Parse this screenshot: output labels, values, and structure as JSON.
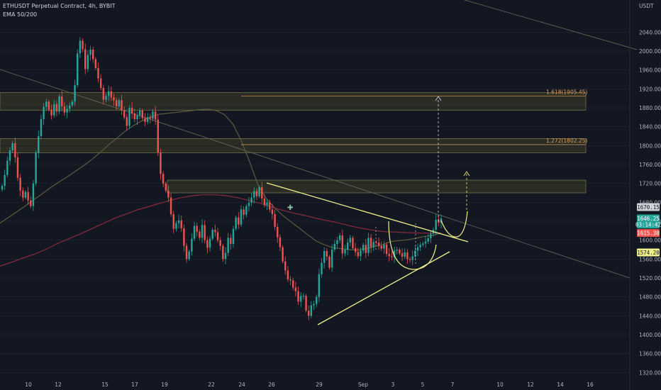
{
  "header": {
    "symbol": "ETHUSDT Perpetual Contract, 4h, BYBIT",
    "indicator": "EMA 50/200"
  },
  "axis_unit": "USDT",
  "colors": {
    "background": "#131722",
    "up": "#26a69a",
    "down": "#ef5350",
    "ema50": "#5d5c3e",
    "ema200": "#8b2b3e",
    "pattern": "#f0f08a",
    "zone": "#4a4a2a",
    "fib": "#e0a060"
  },
  "chart_data": {
    "type": "candlestick",
    "y_ticks": [
      1320,
      1360,
      1400,
      1440,
      1480,
      1520,
      1560,
      1600,
      1640,
      1680,
      1720,
      1760,
      1800,
      1840,
      1880,
      1920,
      1960,
      2000,
      2040
    ],
    "ylim": [
      1300,
      2080
    ],
    "x_ticks": [
      "10",
      "12",
      "15",
      "17",
      "19",
      "22",
      "24",
      "26",
      "29",
      "Sep",
      "3",
      "5",
      "7",
      "10",
      "12",
      "14",
      "16"
    ],
    "price_tags": [
      {
        "label": "1670.15",
        "value": 1670,
        "bg": "#cfd2d6",
        "fg": "#131722"
      },
      {
        "label": "1646.25",
        "value": 1646,
        "bg": "#26a69a",
        "fg": "#ffffff"
      },
      {
        "label": "03:14:42",
        "value": 1633,
        "bg": "#26a69a",
        "fg": "#ffffff"
      },
      {
        "label": "1615.30",
        "value": 1615,
        "bg": "#ef5350",
        "fg": "#ffffff"
      },
      {
        "label": "1574.20",
        "value": 1574,
        "bg": "#f0f08a",
        "fg": "#131722"
      }
    ],
    "fib_levels": [
      {
        "label": "1.618(1905.45)",
        "value": 1905
      },
      {
        "label": "1.272(1802.25)",
        "value": 1802
      }
    ],
    "zones": [
      {
        "from": 1875,
        "to": 1912
      },
      {
        "from": 1785,
        "to": 1815
      },
      {
        "from": 1700,
        "to": 1727
      }
    ],
    "closes": [
      1715,
      1738,
      1768,
      1790,
      1805,
      1775,
      1732,
      1705,
      1690,
      1702,
      1684,
      1672,
      1720,
      1785,
      1820,
      1856,
      1882,
      1893,
      1876,
      1864,
      1888,
      1872,
      1904,
      1883,
      1870,
      1878,
      1885,
      1893,
      1928,
      1995,
      2022,
      2004,
      1962,
      1992,
      2003,
      1983,
      1964,
      1942,
      1922,
      1897,
      1905,
      1915,
      1902,
      1896,
      1883,
      1896,
      1874,
      1860,
      1842,
      1880,
      1868,
      1856,
      1864,
      1874,
      1858,
      1850,
      1860,
      1857,
      1872,
      1855,
      1785,
      1740,
      1720,
      1705,
      1690,
      1655,
      1624,
      1636,
      1642,
      1625,
      1588,
      1560,
      1576,
      1603,
      1630,
      1618,
      1605,
      1632,
      1600,
      1584,
      1603,
      1622,
      1617,
      1600,
      1588,
      1560,
      1573,
      1605,
      1592,
      1624,
      1648,
      1633,
      1665,
      1654,
      1672,
      1679,
      1690,
      1704,
      1693,
      1712,
      1688,
      1674,
      1680,
      1665,
      1655,
      1628,
      1606,
      1585,
      1555,
      1536,
      1517,
      1515,
      1500,
      1492,
      1470,
      1482,
      1482,
      1451,
      1440,
      1462,
      1465,
      1480,
      1528,
      1552,
      1577,
      1565,
      1542,
      1580,
      1592,
      1600,
      1610,
      1572,
      1580,
      1595,
      1605,
      1583,
      1575,
      1566,
      1578,
      1590,
      1573,
      1605,
      1585,
      1596,
      1595,
      1588,
      1582,
      1591,
      1571,
      1566,
      1564,
      1578,
      1580,
      1572,
      1565,
      1574,
      1560,
      1558,
      1566,
      1578,
      1585,
      1590,
      1593,
      1597,
      1604,
      1614,
      1622,
      1643,
      1637,
      1646
    ],
    "ema50": [
      1636,
      1648,
      1660,
      1672,
      1685,
      1697,
      1710,
      1722,
      1733,
      1745,
      1757,
      1770,
      1785,
      1801,
      1815,
      1830,
      1842,
      1852,
      1860,
      1866,
      1868,
      1870,
      1872,
      1874,
      1876,
      1877,
      1874,
      1865,
      1845,
      1810,
      1765,
      1717,
      1688,
      1668,
      1652,
      1638,
      1625,
      1611,
      1598,
      1590,
      1584,
      1582,
      1580,
      1579,
      1582,
      1586,
      1591,
      1597,
      1599,
      1601,
      1604,
      1608,
      1610,
      1615
    ],
    "ema200": [
      1545,
      1553,
      1562,
      1570,
      1580,
      1592,
      1602,
      1612,
      1623,
      1634,
      1645,
      1654,
      1663,
      1670,
      1677,
      1684,
      1690,
      1694,
      1696,
      1696,
      1694,
      1690,
      1684,
      1678,
      1670,
      1663,
      1657,
      1652,
      1646,
      1641,
      1636,
      1630,
      1625,
      1621,
      1618,
      1617,
      1616,
      1615,
      1615,
      1615
    ],
    "ema_series": [
      "EMA 50",
      "EMA 200"
    ]
  }
}
